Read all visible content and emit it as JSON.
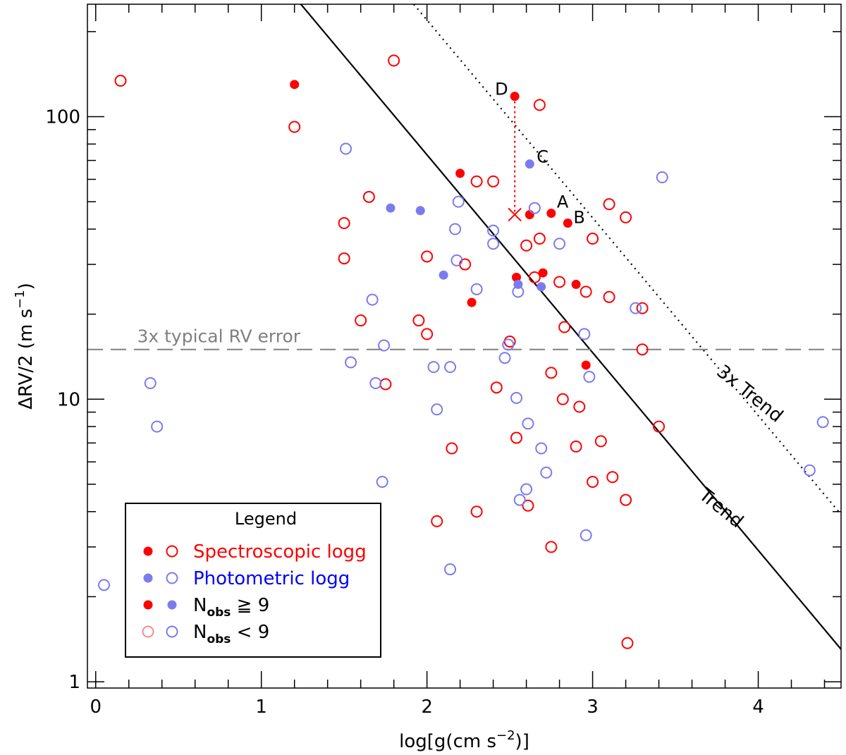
{
  "chart_data": {
    "type": "scatter",
    "x_axis": {
      "label": "log[g(cm s",
      "label_sup": "−2",
      "label_end": ")]",
      "range": [
        -0.05,
        4.5
      ],
      "ticks": [
        0,
        1,
        2,
        3,
        4
      ]
    },
    "y_axis": {
      "label": "ΔRV/2 (m s",
      "label_sup": "−1",
      "label_end": ")",
      "scale": "log",
      "range": [
        0.95,
        250
      ],
      "ticks": [
        1,
        10,
        100
      ]
    },
    "colors": {
      "spectroscopic": "#ff0000",
      "photometric": "#7b7bef",
      "trend": "#000000",
      "error_line": "#808080",
      "legend_open_spec": "#ff8a8a"
    },
    "trend": {
      "label": "Trend",
      "intercept_log": 3.265,
      "slope": -0.7
    },
    "trend_3x": {
      "label": "3x Trend",
      "intercept_log": 3.742,
      "slope": -0.7
    },
    "error_line": {
      "label": "3x typical RV error",
      "value": 15
    },
    "series": [
      {
        "name": "Spectroscopic, Nobs ≥ 9",
        "marker": "filled",
        "color": "spectroscopic",
        "points": [
          [
            1.2,
            130
          ],
          [
            2.2,
            63
          ],
          [
            2.27,
            22
          ],
          [
            2.53,
            118
          ],
          [
            2.54,
            27
          ],
          [
            2.62,
            45
          ],
          [
            2.7,
            28
          ],
          [
            2.75,
            45.5
          ],
          [
            2.85,
            42
          ],
          [
            2.9,
            25.5
          ],
          [
            2.96,
            13.2
          ]
        ]
      },
      {
        "name": "Spectroscopic, Nobs < 9",
        "marker": "open",
        "color": "spectroscopic",
        "points": [
          [
            0.15,
            134
          ],
          [
            1.2,
            92
          ],
          [
            1.5,
            42
          ],
          [
            1.5,
            31.5
          ],
          [
            1.6,
            19
          ],
          [
            1.65,
            52
          ],
          [
            1.75,
            11.3
          ],
          [
            1.8,
            158
          ],
          [
            1.95,
            19
          ],
          [
            2.0,
            32
          ],
          [
            2.0,
            17
          ],
          [
            2.06,
            3.7
          ],
          [
            2.15,
            6.7
          ],
          [
            2.23,
            30
          ],
          [
            2.3,
            59
          ],
          [
            2.3,
            4
          ],
          [
            2.4,
            59
          ],
          [
            2.42,
            11
          ],
          [
            2.5,
            16
          ],
          [
            2.54,
            7.3
          ],
          [
            2.6,
            35
          ],
          [
            2.61,
            4.2
          ],
          [
            2.65,
            27
          ],
          [
            2.68,
            37
          ],
          [
            2.68,
            110
          ],
          [
            2.75,
            12.4
          ],
          [
            2.75,
            3
          ],
          [
            2.8,
            26
          ],
          [
            2.82,
            10
          ],
          [
            2.83,
            18
          ],
          [
            2.9,
            6.8
          ],
          [
            2.92,
            9.4
          ],
          [
            2.96,
            24
          ],
          [
            3.0,
            37
          ],
          [
            3.0,
            5.1
          ],
          [
            3.05,
            7.1
          ],
          [
            3.1,
            49
          ],
          [
            3.1,
            23
          ],
          [
            3.12,
            5.3
          ],
          [
            3.2,
            44
          ],
          [
            3.2,
            4.4
          ],
          [
            3.21,
            1.37
          ],
          [
            3.3,
            21
          ],
          [
            3.3,
            15
          ],
          [
            3.4,
            8
          ]
        ]
      },
      {
        "name": "Photometric, Nobs ≥ 9",
        "marker": "filled",
        "color": "photometric",
        "points": [
          [
            1.78,
            47.5
          ],
          [
            1.96,
            46.5
          ],
          [
            2.1,
            27.5
          ],
          [
            2.55,
            25.5
          ],
          [
            2.62,
            68
          ],
          [
            2.69,
            25
          ]
        ]
      },
      {
        "name": "Photometric, Nobs < 9",
        "marker": "open",
        "color": "photometric",
        "points": [
          [
            0.05,
            2.2
          ],
          [
            0.33,
            11.4
          ],
          [
            0.37,
            8
          ],
          [
            1.51,
            77
          ],
          [
            1.54,
            13.5
          ],
          [
            1.67,
            22.5
          ],
          [
            1.69,
            11.4
          ],
          [
            1.73,
            5.1
          ],
          [
            1.74,
            15.5
          ],
          [
            2.04,
            13
          ],
          [
            2.06,
            9.2
          ],
          [
            2.14,
            13
          ],
          [
            2.14,
            2.5
          ],
          [
            2.17,
            40
          ],
          [
            2.18,
            31
          ],
          [
            2.19,
            50
          ],
          [
            2.3,
            24.5
          ],
          [
            2.4,
            39.5
          ],
          [
            2.4,
            35.5
          ],
          [
            2.47,
            14
          ],
          [
            2.49,
            15.6
          ],
          [
            2.54,
            10.1
          ],
          [
            2.55,
            24
          ],
          [
            2.56,
            4.4
          ],
          [
            2.6,
            4.8
          ],
          [
            2.61,
            8.2
          ],
          [
            2.65,
            47.5
          ],
          [
            2.69,
            6.7
          ],
          [
            2.72,
            5.5
          ],
          [
            2.8,
            35.5
          ],
          [
            2.95,
            17
          ],
          [
            2.96,
            3.3
          ],
          [
            2.98,
            12
          ],
          [
            3.26,
            21
          ],
          [
            3.42,
            61
          ],
          [
            4.31,
            5.6
          ],
          [
            4.39,
            8.3
          ]
        ]
      }
    ],
    "annotations": [
      {
        "label": "D",
        "x": 2.53,
        "y": 118
      },
      {
        "label": "C",
        "x": 2.62,
        "y": 68
      },
      {
        "label": "A",
        "x": 2.75,
        "y": 45.5
      },
      {
        "label": "B",
        "x": 2.85,
        "y": 42
      }
    ],
    "marker_x": {
      "x": 2.53,
      "y": 45
    },
    "legend": {
      "title": "Legend",
      "entries": [
        {
          "text": "Spectroscopic logg",
          "color": "spectroscopic",
          "markers": [
            "filled-spectroscopic",
            "open-spectroscopic"
          ]
        },
        {
          "text": "Photometric logg",
          "color": "photometric-text",
          "markers": [
            "filled-photometric",
            "open-photometric"
          ]
        },
        {
          "text_main": "N",
          "text_sub": "obs",
          "text_rest": " ≧ 9",
          "markers": [
            "filled-spectroscopic",
            "filled-photometric"
          ]
        },
        {
          "text_main": "N",
          "text_sub": "obs",
          "text_rest": " < 9",
          "markers": [
            "open-legend-spectroscopic",
            "open-photometric"
          ]
        }
      ],
      "photometric_text_color": "#0000ff"
    }
  }
}
